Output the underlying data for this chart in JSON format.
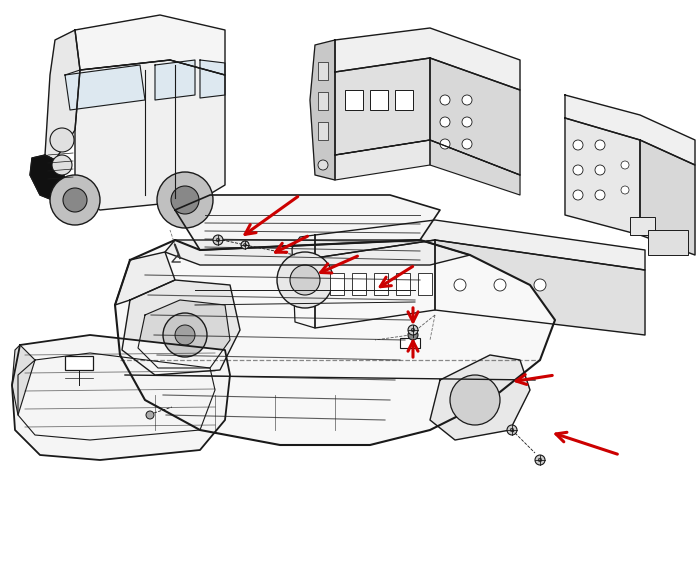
{
  "background_color": "#ffffff",
  "figure_width": 7.0,
  "figure_height": 5.74,
  "dpi": 100,
  "line_color": "#1a1a1a",
  "arrow_color": "#cc0000",
  "light_gray": "#e8e8e8",
  "mid_gray": "#d0d0d0",
  "dark_fill": "#111111"
}
